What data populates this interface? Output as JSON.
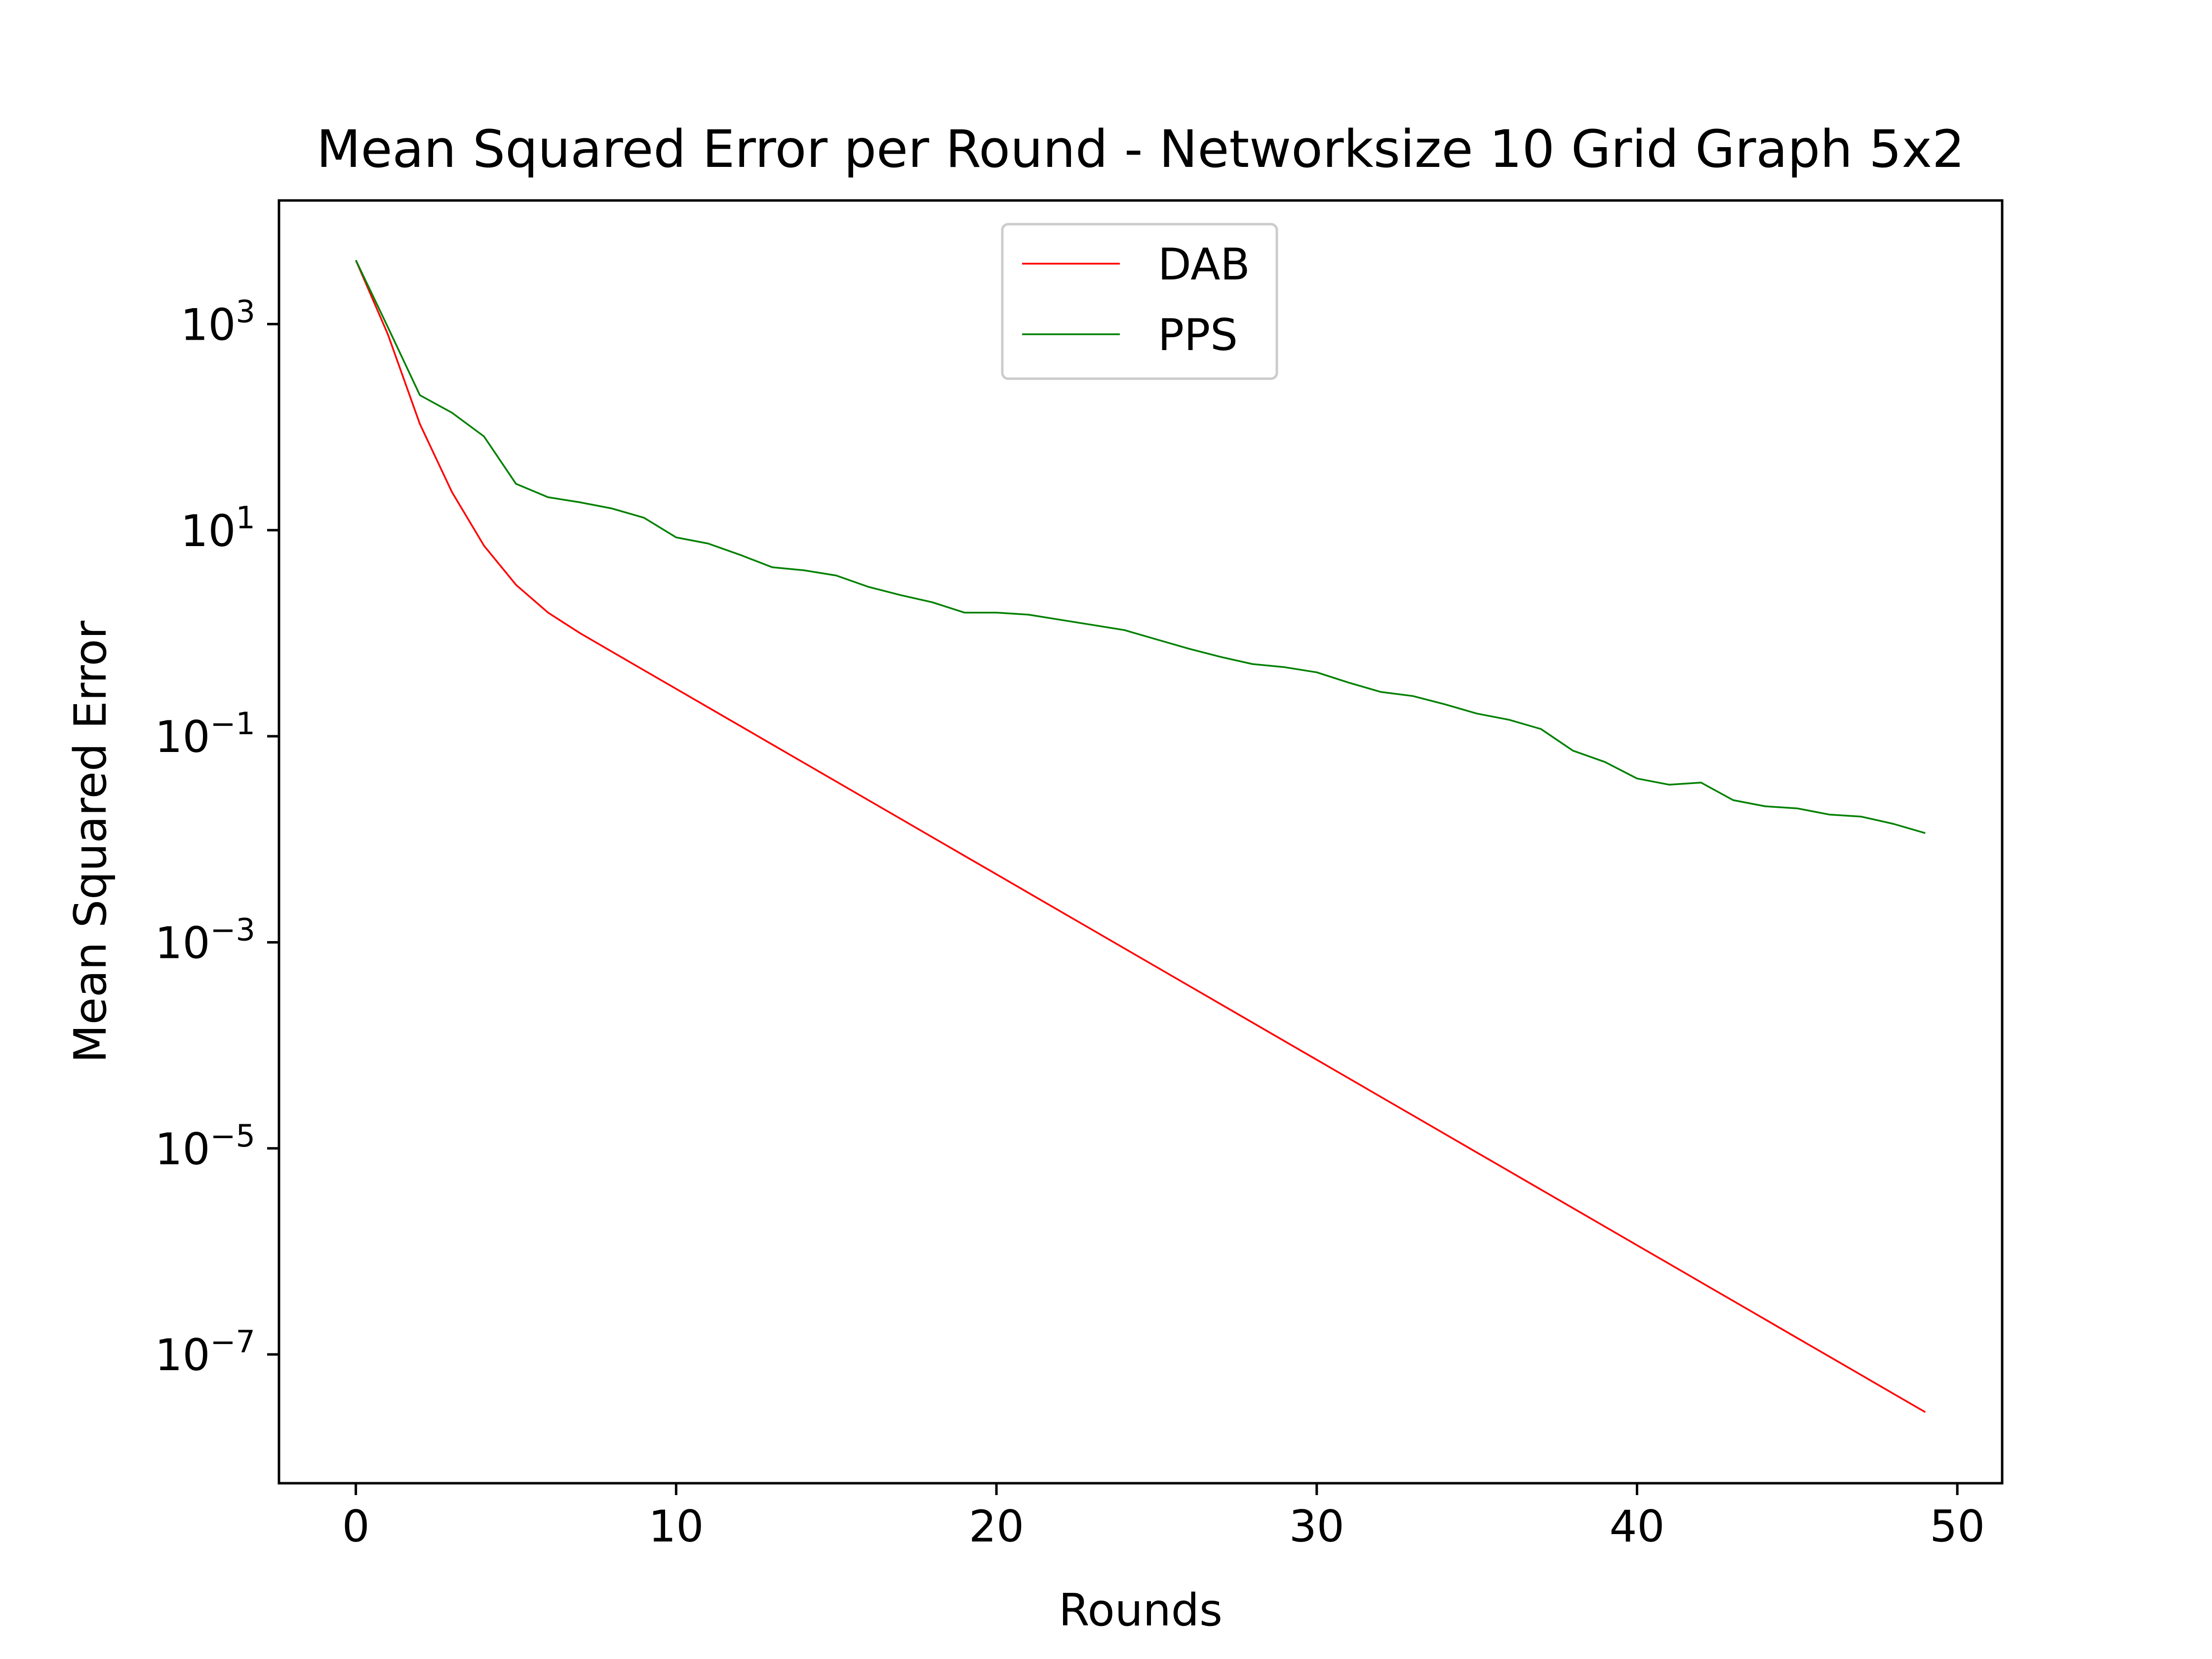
{
  "chart_data": {
    "type": "line",
    "title": "Mean Squared Error per Round - Networksize 10 Grid Graph 5x2",
    "xlabel": "Rounds",
    "ylabel": "Mean Squared Error",
    "yscale": "log",
    "xlim": [
      -2.4,
      51.4
    ],
    "ylim_log10": [
      -8.25,
      4.2
    ],
    "grid": false,
    "legend_position": "upper center",
    "x_ticks": [
      0,
      10,
      20,
      30,
      40,
      50
    ],
    "y_ticks": [
      {
        "exp": 3,
        "base": "10",
        "sup": "3"
      },
      {
        "exp": 1,
        "base": "10",
        "sup": "1"
      },
      {
        "exp": -1,
        "base": "10",
        "sup": "−1"
      },
      {
        "exp": -3,
        "base": "10",
        "sup": "−3"
      },
      {
        "exp": -5,
        "base": "10",
        "sup": "−5"
      },
      {
        "exp": -7,
        "base": "10",
        "sup": "−7"
      }
    ],
    "series": [
      {
        "name": "DAB",
        "color": "#ff0000",
        "x": [
          0,
          1,
          2,
          3,
          4,
          5,
          6,
          7,
          8,
          9,
          10,
          11,
          12,
          13,
          14,
          15,
          16,
          17,
          18,
          19,
          20,
          21,
          22,
          23,
          24,
          25,
          26,
          27,
          28,
          29,
          30,
          31,
          32,
          33,
          34,
          35,
          36,
          37,
          38,
          39,
          40,
          41,
          42,
          43,
          44,
          45,
          46,
          47,
          48,
          49
        ],
        "log10_y": [
          3.62,
          2.9,
          2.03,
          1.37,
          0.85,
          0.47,
          0.2,
          0.0,
          -0.18,
          -0.36,
          -0.54,
          -0.72,
          -0.9,
          -1.08,
          -1.26,
          -1.44,
          -1.62,
          -1.8,
          -1.98,
          -2.16,
          -2.34,
          -2.52,
          -2.7,
          -2.88,
          -3.06,
          -3.24,
          -3.42,
          -3.6,
          -3.78,
          -3.96,
          -4.14,
          -4.32,
          -4.5,
          -4.68,
          -4.86,
          -5.04,
          -5.22,
          -5.4,
          -5.58,
          -5.76,
          -5.94,
          -6.12,
          -6.3,
          -6.48,
          -6.66,
          -6.84,
          -7.02,
          -7.2,
          -7.38,
          -7.56
        ]
      },
      {
        "name": "PPS",
        "color": "#008000",
        "x": [
          0,
          1,
          2,
          3,
          4,
          5,
          6,
          7,
          8,
          9,
          10,
          11,
          12,
          13,
          14,
          15,
          16,
          17,
          18,
          19,
          20,
          21,
          22,
          23,
          24,
          25,
          26,
          27,
          28,
          29,
          30,
          31,
          32,
          33,
          34,
          35,
          36,
          37,
          38,
          39,
          40,
          41,
          42,
          43,
          44,
          45,
          46,
          47,
          48,
          49
        ],
        "log10_y": [
          3.62,
          2.97,
          2.31,
          2.14,
          1.91,
          1.45,
          1.32,
          1.27,
          1.21,
          1.12,
          0.93,
          0.87,
          0.76,
          0.64,
          0.61,
          0.56,
          0.45,
          0.37,
          0.3,
          0.2,
          0.2,
          0.18,
          0.13,
          0.08,
          0.03,
          -0.06,
          -0.15,
          -0.23,
          -0.3,
          -0.33,
          -0.38,
          -0.48,
          -0.57,
          -0.61,
          -0.69,
          -0.78,
          -0.84,
          -0.93,
          -1.14,
          -1.25,
          -1.41,
          -1.47,
          -1.45,
          -1.62,
          -1.68,
          -1.7,
          -1.76,
          -1.78,
          -1.85,
          -1.94
        ]
      }
    ]
  }
}
